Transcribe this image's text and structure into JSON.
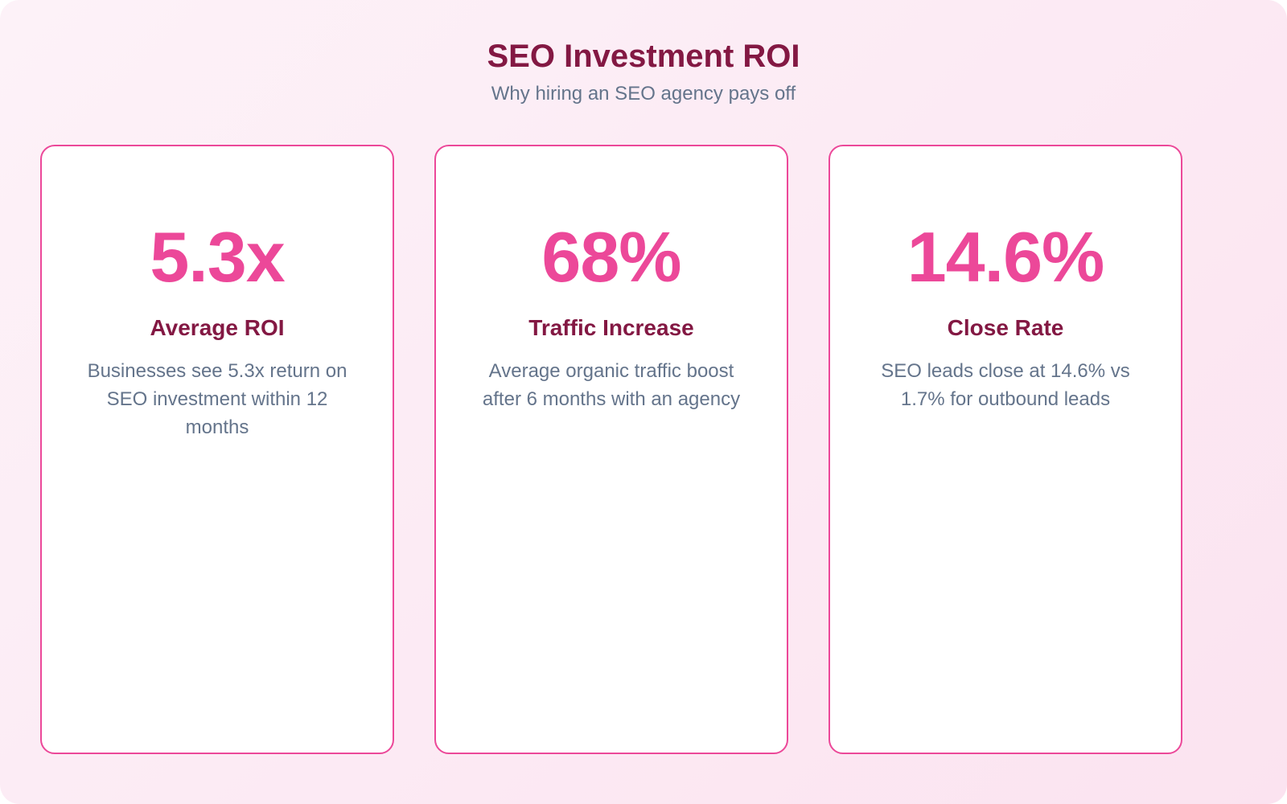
{
  "page": {
    "title": "SEO Investment ROI",
    "subtitle": "Why hiring an SEO agency pays off"
  },
  "stats": [
    {
      "value": "5.3x",
      "label": "Average ROI",
      "description": "Businesses see 5.3x return on SEO investment within 12 months"
    },
    {
      "value": "68%",
      "label": "Traffic Increase",
      "description": "Average organic traffic boost after 6 months with an agency"
    },
    {
      "value": "14.6%",
      "label": "Close Rate",
      "description": "SEO leads close at 14.6% vs 1.7% for outbound leads"
    }
  ],
  "chart_data": {
    "type": "table",
    "title": "SEO Investment ROI",
    "subtitle": "Why hiring an SEO agency pays off",
    "categories": [
      "Average ROI",
      "Traffic Increase",
      "Close Rate"
    ],
    "values": [
      5.3,
      68,
      14.6
    ],
    "units": [
      "x",
      "%",
      "%"
    ],
    "notes": [
      "Businesses see 5.3x return on SEO investment within 12 months",
      "Average organic traffic boost after 6 months with an agency",
      "SEO leads close at 14.6% vs 1.7% for outbound leads"
    ],
    "layout": "three stat cards in a row, values displayed as big numbers"
  },
  "colors": {
    "bg_start": "#fdf2f8",
    "bg_end": "#fbe3f0",
    "card_bg": "#ffffff",
    "card_border": "#ec4899",
    "value": "#ec4899",
    "label": "#831843",
    "title": "#831843",
    "desc": "#64748b"
  }
}
